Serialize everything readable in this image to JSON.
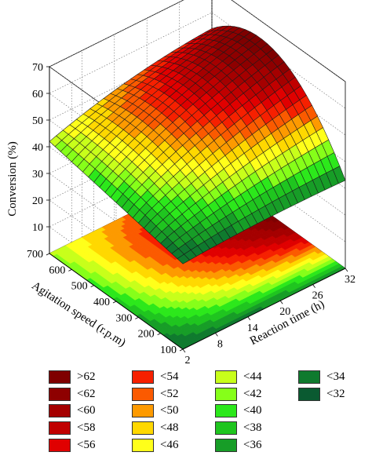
{
  "chart_data": {
    "type": "surface3d",
    "zlabel": "Conversion (%)",
    "xlabel": "Reaction time (h)",
    "ylabel": "Agitation speed (r.p.m)",
    "x_ticks": [
      2,
      8,
      14,
      20,
      26,
      32
    ],
    "y_ticks": [
      100,
      200,
      300,
      400,
      500,
      600,
      700
    ],
    "z_ticks": [
      10,
      20,
      30,
      40,
      50,
      60,
      70
    ],
    "x_range": [
      2,
      32
    ],
    "y_range": [
      100,
      700
    ],
    "z_range": [
      0,
      70
    ],
    "corner_values": [
      {
        "time": 2,
        "speed": 700,
        "conversion": 42
      },
      {
        "time": 32,
        "speed": 700,
        "conversion": 54
      },
      {
        "time": 32,
        "speed": 100,
        "conversion": 33
      },
      {
        "time": 2,
        "speed": 100,
        "conversion": 32
      },
      {
        "time": 32,
        "speed": 400,
        "conversion": 62
      }
    ],
    "legend": [
      {
        "label": ">62",
        "color": "#7f0000"
      },
      {
        "label": "<62",
        "color": "#8e0000"
      },
      {
        "label": "<60",
        "color": "#a50000"
      },
      {
        "label": "<58",
        "color": "#c00000"
      },
      {
        "label": "<56",
        "color": "#e00000"
      },
      {
        "label": "<54",
        "color": "#f62000"
      },
      {
        "label": "<52",
        "color": "#fb5a00"
      },
      {
        "label": "<50",
        "color": "#fd9a00"
      },
      {
        "label": "<48",
        "color": "#ffd800"
      },
      {
        "label": "<46",
        "color": "#ffff1a"
      },
      {
        "label": "<44",
        "color": "#c8ff1a"
      },
      {
        "label": "<42",
        "color": "#86ff19"
      },
      {
        "label": "<40",
        "color": "#2ce81b"
      },
      {
        "label": "<38",
        "color": "#1fc51f"
      },
      {
        "label": "<36",
        "color": "#179d27"
      },
      {
        "label": "<34",
        "color": "#0f7a2e"
      },
      {
        "label": "<32",
        "color": "#0a5a31"
      }
    ],
    "grid": true
  }
}
